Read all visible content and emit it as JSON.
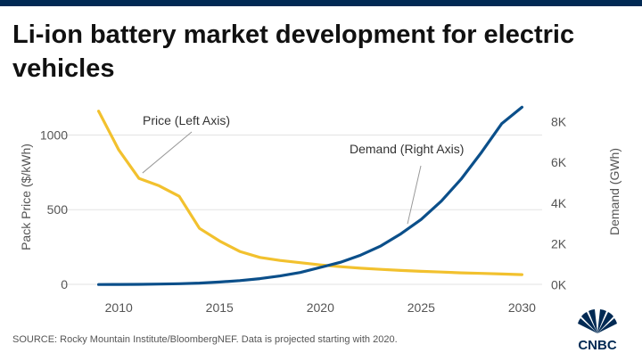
{
  "header": {
    "title": "Li-ion battery market development for electric vehicles"
  },
  "footer": {
    "source": "SOURCE: Rocky Mountain Institute/BloombergNEF. Data is projected starting with 2020.",
    "logo_text": "CNBC"
  },
  "colors": {
    "price": "#f2c12e",
    "demand": "#0b4f8a",
    "axis_text": "#555555",
    "grid": "#e3e3e3",
    "top_bar": "#012a54"
  },
  "chart_data": {
    "type": "line",
    "title": "Li-ion battery market development for electric vehicles",
    "xlim": [
      2008,
      2031
    ],
    "x_ticks": [
      2010,
      2015,
      2020,
      2025,
      2030
    ],
    "x_tick_labels": [
      "2010",
      "2015",
      "2020",
      "2025",
      "2030"
    ],
    "y_left": {
      "label": "Pack Price ($/kWh)",
      "range": [
        -30,
        1200
      ],
      "ticks": [
        0,
        500,
        1000
      ],
      "tick_labels": [
        "0",
        "500",
        "1000"
      ]
    },
    "y_right": {
      "label": "Demand (GWh)",
      "range": [
        -200,
        8800
      ],
      "ticks": [
        0,
        2000,
        4000,
        6000,
        8000
      ],
      "tick_labels": [
        "0K",
        "2K",
        "4K",
        "6K",
        "8K"
      ]
    },
    "grid": "horizontal",
    "series": [
      {
        "name": "Price (Left Axis)",
        "axis": "left",
        "color": "#f2c12e",
        "x": [
          2009,
          2010,
          2011,
          2012,
          2013,
          2014,
          2015,
          2016,
          2017,
          2018,
          2019,
          2020,
          2021,
          2022,
          2023,
          2024,
          2025,
          2026,
          2027,
          2028,
          2029,
          2030
        ],
        "y": [
          1160,
          900,
          710,
          660,
          590,
          375,
          290,
          220,
          180,
          160,
          145,
          130,
          118,
          108,
          100,
          93,
          87,
          82,
          77,
          73,
          69,
          65
        ]
      },
      {
        "name": "Demand (Right Axis)",
        "axis": "right",
        "color": "#0b4f8a",
        "x": [
          2009,
          2010,
          2011,
          2012,
          2013,
          2014,
          2015,
          2016,
          2017,
          2018,
          2019,
          2020,
          2021,
          2022,
          2023,
          2024,
          2025,
          2026,
          2027,
          2028,
          2029,
          2030
        ],
        "y": [
          10,
          15,
          20,
          30,
          50,
          80,
          130,
          200,
          300,
          430,
          600,
          850,
          1100,
          1450,
          1900,
          2500,
          3200,
          4100,
          5200,
          6500,
          7900,
          8700
        ]
      }
    ],
    "annotations": [
      {
        "text": "Price (Left Axis)",
        "series": 0,
        "at_x": 2011
      },
      {
        "text": "Demand (Right Axis)",
        "series": 1,
        "at_x": 2024.5
      }
    ]
  }
}
